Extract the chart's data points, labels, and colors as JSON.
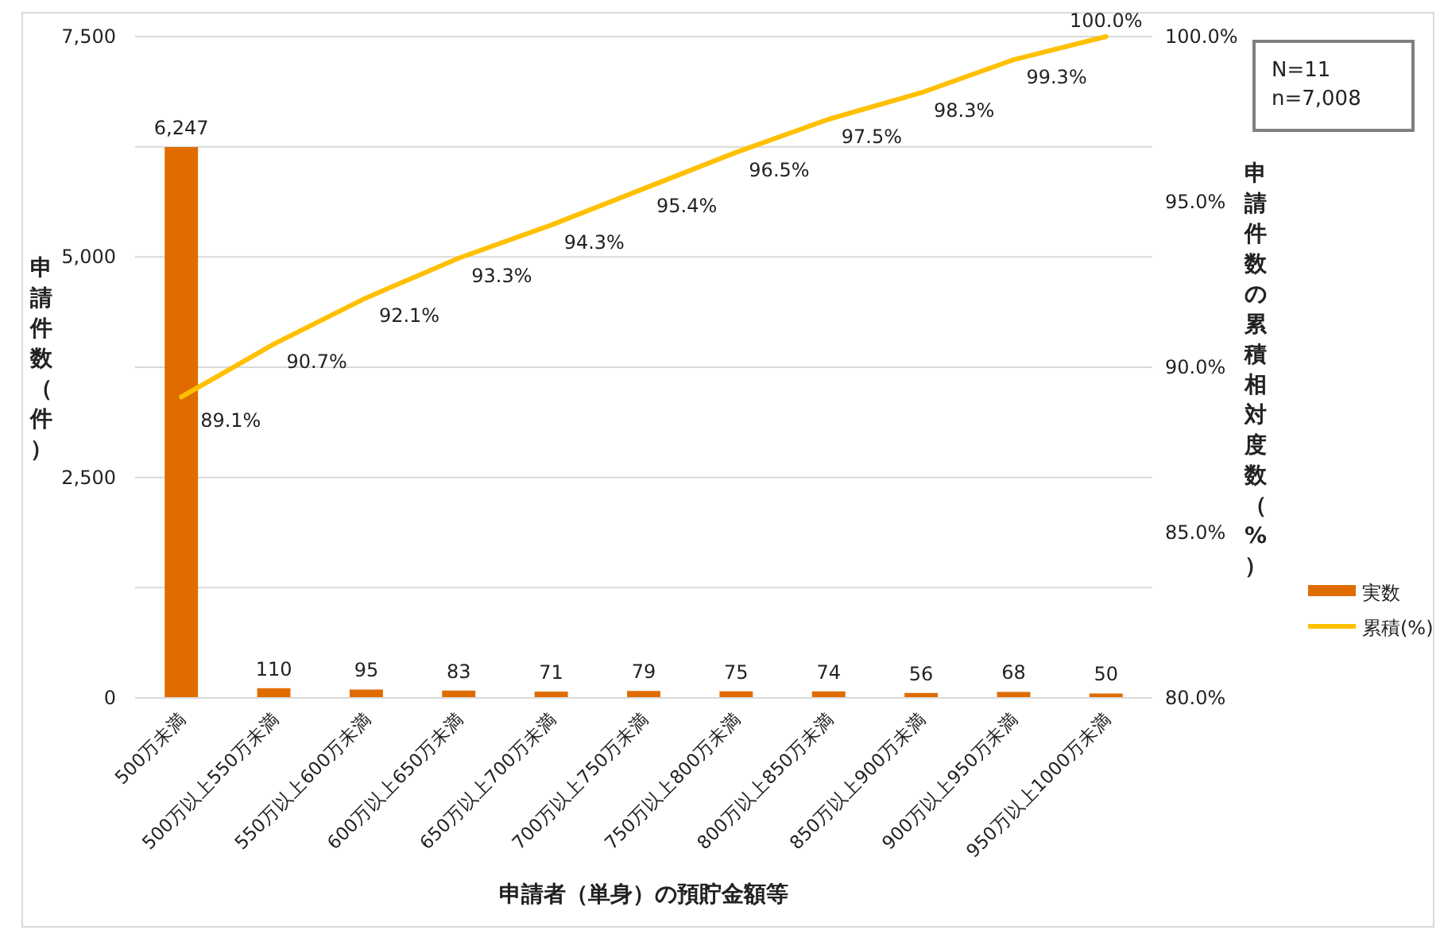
{
  "chart_data": {
    "type": "bar",
    "xlabel": "申請者（単身）の預貯金額等",
    "ylabel": "申請件数（件）",
    "y2label": "申請件数の累積相対度数（%）",
    "categories": [
      "500万未満",
      "500万以上550万未満",
      "550万以上600万未満",
      "600万以上650万未満",
      "650万以上700万未満",
      "700万以上750万未満",
      "750万以上800万未満",
      "800万以上850万未満",
      "850万以上900万未満",
      "900万以上950万未満",
      "950万以上1000万未満"
    ],
    "series": [
      {
        "name": "実数",
        "color": "#e06c00",
        "values": [
          6247,
          110,
          95,
          83,
          71,
          79,
          75,
          74,
          56,
          68,
          50
        ],
        "value_labels": [
          "6,247",
          "110",
          "95",
          "83",
          "71",
          "79",
          "75",
          "74",
          "56",
          "68",
          "50"
        ]
      },
      {
        "name": "累積(%)",
        "type": "line",
        "axis": "y2",
        "color": "#ffc000",
        "values": [
          89.1,
          90.7,
          92.1,
          93.3,
          94.3,
          95.4,
          96.5,
          97.5,
          98.3,
          99.3,
          100.0
        ],
        "value_labels": [
          "89.1%",
          "90.7%",
          "92.1%",
          "93.3%",
          "94.3%",
          "95.4%",
          "96.5%",
          "97.5%",
          "98.3%",
          "99.3%",
          "100.0%"
        ]
      }
    ],
    "ylim": [
      0,
      7500
    ],
    "yticks": [
      {
        "value": 0,
        "label": "0"
      },
      {
        "value": 1250,
        "label": null
      },
      {
        "value": 2500,
        "label": "2,500"
      },
      {
        "value": 3750,
        "label": null
      },
      {
        "value": 5000,
        "label": "5,000"
      },
      {
        "value": 6250,
        "label": null
      },
      {
        "value": 7500,
        "label": "7,500"
      }
    ],
    "y2lim": [
      80,
      100
    ],
    "y2ticks": [
      {
        "value": 80,
        "label": "80.0%"
      },
      {
        "value": 85,
        "label": "85.0%"
      },
      {
        "value": 90,
        "label": "90.0%"
      },
      {
        "value": 95,
        "label": "95.0%"
      },
      {
        "value": 100,
        "label": "100.0%"
      }
    ],
    "grid": "y",
    "legend": "right",
    "annotations": [
      "N=11",
      "n=7,008"
    ]
  }
}
